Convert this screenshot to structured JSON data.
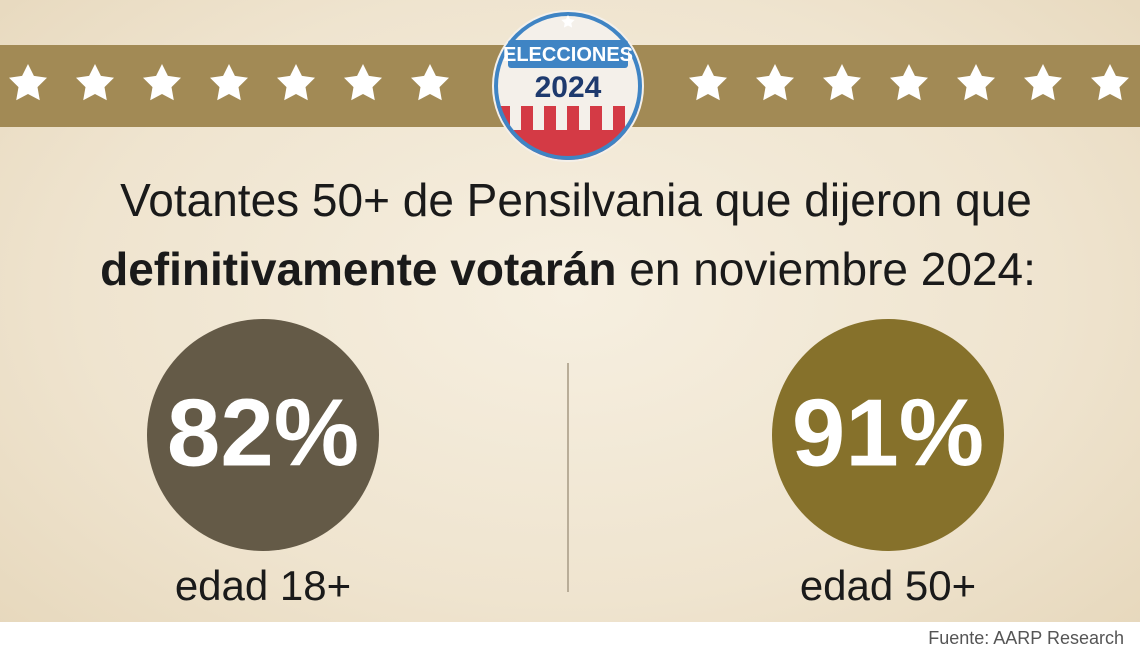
{
  "badge": {
    "title": "ELECCIONES",
    "year": "2024"
  },
  "heading": {
    "line1": "Votantes 50+ de Pensilvania que dijeron que",
    "bold": "definitivamente votarán",
    "rest": "en noviembre 2024:"
  },
  "stats": [
    {
      "value": "82%",
      "label": "edad 18+",
      "color": "#645a47"
    },
    {
      "value": "91%",
      "label": "edad 50+",
      "color": "#86712b"
    }
  ],
  "source": "Fuente: AARP Research"
}
